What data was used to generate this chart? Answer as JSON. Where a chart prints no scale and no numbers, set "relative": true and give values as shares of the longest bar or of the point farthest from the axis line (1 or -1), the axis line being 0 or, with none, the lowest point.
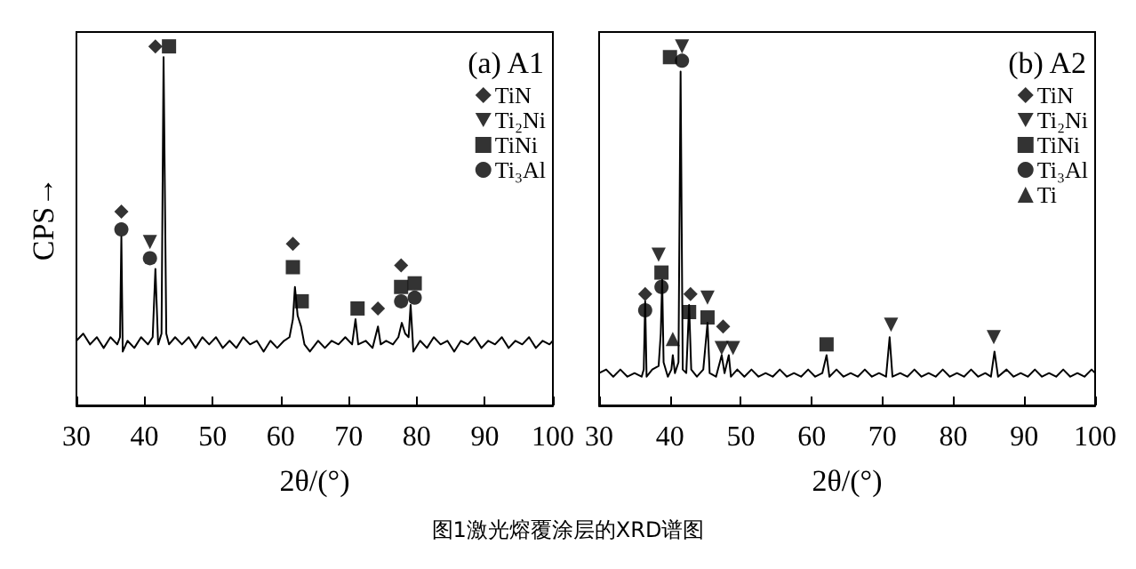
{
  "chart_data": [
    {
      "type": "line",
      "title": "(a) A1",
      "xlabel": "2θ/(°)",
      "ylabel": "CPS→",
      "relative": true,
      "xlim": [
        30,
        100
      ],
      "xticks": [
        30,
        40,
        50,
        60,
        70,
        80,
        90,
        100
      ],
      "tick_labels": "x",
      "grid": false,
      "legend": "top right",
      "annotations": [
        "图1激光熔覆涂层的XRD谱图"
      ],
      "series": [
        {
          "color": "#000000",
          "marker": "none",
          "x": [
            30,
            31,
            32,
            33,
            34,
            35,
            36,
            36.4,
            36.6,
            36.8,
            37.5,
            38.5,
            39.5,
            40.5,
            41.2,
            41.6,
            42.0,
            42.5,
            42.8,
            43.2,
            43.6,
            44.5,
            45.5,
            46.5,
            47.5,
            48.5,
            49.5,
            50.5,
            51.5,
            52.5,
            53.5,
            54.5,
            55.5,
            56.5,
            57.5,
            58.5,
            59.5,
            60.5,
            61.3,
            61.8,
            62.1,
            62.5,
            63.0,
            63.5,
            64.3,
            65.5,
            66.5,
            67.5,
            68.5,
            69.5,
            70.5,
            71.0,
            71.4,
            72.5,
            73.5,
            74.3,
            74.7,
            75.5,
            76.5,
            77.3,
            77.8,
            78.3,
            78.8,
            79.1,
            79.5,
            80.5,
            81.5,
            82.5,
            83.5,
            84.5,
            85.5,
            86.5,
            87.5,
            88.5,
            89.5,
            90.5,
            91.5,
            92.5,
            93.5,
            94.5,
            95.5,
            96.5,
            97.5,
            98.5,
            99.5,
            100
          ],
          "values": [
            0.18,
            0.2,
            0.17,
            0.19,
            0.16,
            0.19,
            0.17,
            0.19,
            0.47,
            0.15,
            0.18,
            0.16,
            0.19,
            0.17,
            0.19,
            0.38,
            0.17,
            0.2,
            0.97,
            0.2,
            0.17,
            0.19,
            0.17,
            0.19,
            0.16,
            0.19,
            0.17,
            0.19,
            0.16,
            0.18,
            0.16,
            0.19,
            0.17,
            0.18,
            0.15,
            0.18,
            0.16,
            0.18,
            0.19,
            0.24,
            0.33,
            0.25,
            0.22,
            0.17,
            0.15,
            0.18,
            0.16,
            0.18,
            0.17,
            0.19,
            0.17,
            0.24,
            0.17,
            0.18,
            0.16,
            0.22,
            0.17,
            0.18,
            0.17,
            0.19,
            0.23,
            0.2,
            0.19,
            0.28,
            0.15,
            0.18,
            0.16,
            0.19,
            0.17,
            0.18,
            0.15,
            0.18,
            0.17,
            0.19,
            0.16,
            0.18,
            0.17,
            0.19,
            0.16,
            0.18,
            0.17,
            0.19,
            0.16,
            0.18,
            0.17,
            0.18
          ]
        },
        {
          "type": "scatter",
          "name": "TiN",
          "color": "#000000",
          "marker": "diamond",
          "x": [
            36.6,
            41.6,
            61.8,
            74.3,
            77.7
          ],
          "values": [
            0.54,
            1.0,
            0.45,
            0.27,
            0.39
          ]
        },
        {
          "type": "scatter",
          "name": "Ti₂Ni",
          "color": "#000000",
          "marker": "triangle_down",
          "x": [
            40.8
          ],
          "values": [
            0.455
          ]
        },
        {
          "type": "scatter",
          "name": "TiNi",
          "color": "#000000",
          "marker": "square",
          "x": [
            43.6,
            61.8,
            63.1,
            71.3,
            77.7,
            79.7
          ],
          "values": [
            1.0,
            0.385,
            0.29,
            0.27,
            0.33,
            0.34
          ]
        },
        {
          "type": "scatter",
          "name": "Ti₃Al",
          "color": "#000000",
          "marker": "circle",
          "x": [
            36.6,
            40.8,
            77.7,
            79.7
          ],
          "values": [
            0.49,
            0.41,
            0.29,
            0.3
          ]
        }
      ]
    },
    {
      "type": "line",
      "title": "(b) A2",
      "xlabel": "2θ/(°)",
      "relative": true,
      "xlim": [
        30,
        100
      ],
      "xticks": [
        30,
        40,
        50,
        60,
        70,
        80,
        90,
        100
      ],
      "tick_labels": "x",
      "grid": false,
      "legend": "top right",
      "series": [
        {
          "color": "#000000",
          "marker": "none",
          "x": [
            30,
            31,
            32,
            33,
            34,
            35,
            36,
            36.3,
            36.5,
            36.7,
            37.5,
            38.4,
            38.7,
            38.9,
            39.1,
            39.7,
            40.2,
            40.4,
            40.7,
            41.2,
            41.5,
            41.8,
            42.3,
            42.7,
            43.0,
            43.8,
            44.7,
            45.3,
            45.6,
            46.5,
            47.3,
            47.7,
            48.3,
            48.6,
            49.5,
            50.5,
            51.5,
            52.5,
            53.5,
            54.5,
            55.5,
            56.5,
            57.5,
            58.5,
            59.5,
            60.5,
            61.5,
            62.1,
            62.5,
            63.5,
            64.5,
            65.5,
            66.5,
            67.5,
            68.5,
            69.5,
            70.5,
            71.0,
            71.4,
            72.5,
            73.5,
            74.5,
            75.5,
            76.5,
            77.5,
            78.5,
            79.5,
            80.5,
            81.5,
            82.5,
            83.5,
            84.5,
            85.3,
            85.8,
            86.3,
            87.5,
            88.5,
            89.5,
            90.5,
            91.5,
            92.5,
            93.5,
            94.5,
            95.5,
            96.5,
            97.5,
            98.5,
            99.5,
            100
          ],
          "values": [
            0.09,
            0.1,
            0.08,
            0.1,
            0.08,
            0.09,
            0.08,
            0.1,
            0.29,
            0.08,
            0.1,
            0.11,
            0.2,
            0.35,
            0.12,
            0.08,
            0.1,
            0.14,
            0.09,
            0.12,
            0.93,
            0.1,
            0.09,
            0.28,
            0.1,
            0.08,
            0.1,
            0.23,
            0.09,
            0.08,
            0.14,
            0.09,
            0.14,
            0.08,
            0.1,
            0.08,
            0.1,
            0.08,
            0.09,
            0.08,
            0.1,
            0.08,
            0.09,
            0.08,
            0.1,
            0.08,
            0.09,
            0.14,
            0.08,
            0.1,
            0.08,
            0.09,
            0.08,
            0.1,
            0.08,
            0.09,
            0.08,
            0.19,
            0.08,
            0.09,
            0.08,
            0.1,
            0.08,
            0.09,
            0.08,
            0.1,
            0.08,
            0.09,
            0.08,
            0.1,
            0.08,
            0.09,
            0.08,
            0.15,
            0.08,
            0.1,
            0.08,
            0.09,
            0.08,
            0.1,
            0.08,
            0.09,
            0.08,
            0.1,
            0.08,
            0.09,
            0.08,
            0.1,
            0.09
          ]
        },
        {
          "type": "scatter",
          "name": "TiN",
          "color": "#000000",
          "marker": "diamond",
          "x": [
            36.5,
            42.9,
            47.5
          ],
          "values": [
            0.31,
            0.31,
            0.22
          ]
        },
        {
          "type": "scatter",
          "name": "Ti₂Ni",
          "color": "#000000",
          "marker": "triangle_down",
          "x": [
            38.4,
            41.7,
            45.3,
            47.3,
            48.9,
            71.2,
            85.7
          ],
          "values": [
            0.42,
            1.0,
            0.3,
            0.16,
            0.16,
            0.225,
            0.19
          ]
        },
        {
          "type": "scatter",
          "name": "TiNi",
          "color": "#000000",
          "marker": "square",
          "x": [
            38.8,
            40.0,
            42.7,
            45.3,
            62.1
          ],
          "values": [
            0.37,
            0.97,
            0.26,
            0.245,
            0.17
          ]
        },
        {
          "type": "scatter",
          "name": "Ti₃Al",
          "color": "#000000",
          "marker": "circle",
          "x": [
            36.5,
            38.8,
            41.7
          ],
          "values": [
            0.265,
            0.33,
            0.96
          ]
        },
        {
          "type": "scatter",
          "name": "Ti",
          "color": "#000000",
          "marker": "triangle",
          "x": [
            40.4
          ],
          "values": [
            0.185
          ]
        }
      ]
    }
  ]
}
